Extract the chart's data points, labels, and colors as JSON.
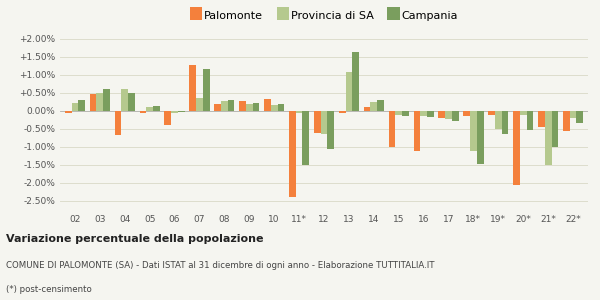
{
  "categories": [
    "02",
    "03",
    "04",
    "05",
    "06",
    "07",
    "08",
    "09",
    "10",
    "11*",
    "12",
    "13",
    "14",
    "15",
    "16",
    "17",
    "18*",
    "19*",
    "20*",
    "21*",
    "22*"
  ],
  "palomonte": [
    -0.05,
    0.48,
    -0.68,
    -0.05,
    -0.38,
    1.28,
    0.2,
    0.27,
    0.32,
    -2.4,
    -0.62,
    -0.05,
    0.1,
    -1.0,
    -1.1,
    -0.2,
    -0.15,
    -0.1,
    -2.05,
    -0.45,
    -0.55
  ],
  "provincia_sa": [
    0.22,
    0.5,
    0.6,
    0.1,
    -0.05,
    0.35,
    0.27,
    0.2,
    0.18,
    -0.05,
    -0.65,
    1.08,
    0.25,
    -0.1,
    -0.13,
    -0.22,
    -1.1,
    -0.5,
    -0.1,
    -1.5,
    -0.2
  ],
  "campania": [
    0.3,
    0.62,
    0.5,
    0.15,
    -0.02,
    1.18,
    0.3,
    0.22,
    0.2,
    -1.5,
    -1.05,
    1.65,
    0.3,
    -0.15,
    -0.17,
    -0.27,
    -1.47,
    -0.65,
    -0.52,
    -1.0,
    -0.32
  ],
  "color_palomonte": "#f4803c",
  "color_provincia": "#b5c98e",
  "color_campania": "#7a9e5e",
  "title": "Variazione percentuale della popolazione",
  "subtitle": "COMUNE DI PALOMONTE (SA) - Dati ISTAT al 31 dicembre di ogni anno - Elaborazione TUTTITALIA.IT",
  "footnote": "(*) post-censimento",
  "legend_labels": [
    "Palomonte",
    "Provincia di SA",
    "Campania"
  ],
  "ylim": [
    -2.75,
    2.25
  ],
  "yticks": [
    -2.5,
    -2.0,
    -1.5,
    -1.0,
    -0.5,
    0.0,
    0.5,
    1.0,
    1.5,
    2.0
  ],
  "bg_color": "#f5f5f0",
  "grid_color": "#ddddcc"
}
